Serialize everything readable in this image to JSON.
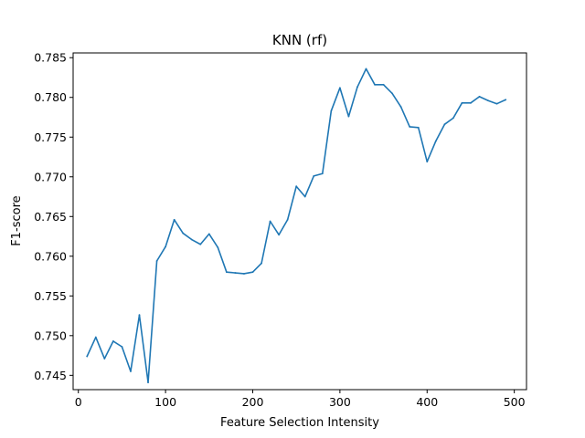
{
  "chart_data": {
    "type": "line",
    "title": "KNN (rf)",
    "xlabel": "Feature Selection Intensity",
    "ylabel": "F1-score",
    "xlim": [
      -6,
      514
    ],
    "ylim": [
      0.7432,
      0.7856
    ],
    "x_ticks": [
      0,
      100,
      200,
      300,
      400,
      500
    ],
    "x_tick_labels": [
      "0",
      "100",
      "200",
      "300",
      "400",
      "500"
    ],
    "y_ticks": [
      0.745,
      0.75,
      0.755,
      0.76,
      0.765,
      0.77,
      0.775,
      0.78,
      0.785
    ],
    "y_tick_labels": [
      "0.745",
      "0.750",
      "0.755",
      "0.760",
      "0.765",
      "0.770",
      "0.775",
      "0.780",
      "0.785"
    ],
    "grid": false,
    "color": "#1f77b4",
    "series": [
      {
        "x": [
          10,
          20,
          30,
          40,
          50,
          60,
          70,
          80,
          90,
          100,
          110,
          120,
          130,
          140,
          150,
          160,
          170,
          180,
          190,
          200,
          210,
          220,
          230,
          240,
          250,
          260,
          270,
          280,
          290,
          300,
          310,
          320,
          330,
          340,
          350,
          360,
          370,
          380,
          390,
          400,
          410,
          420,
          430,
          440,
          450,
          460,
          470,
          480,
          490
        ],
        "values": [
          0.7474,
          0.7498,
          0.7471,
          0.7493,
          0.7486,
          0.7455,
          0.7526,
          0.7441,
          0.7594,
          0.7612,
          0.7646,
          0.7629,
          0.7621,
          0.7615,
          0.7628,
          0.7611,
          0.758,
          0.7579,
          0.7578,
          0.758,
          0.7591,
          0.7644,
          0.7627,
          0.7646,
          0.7688,
          0.7675,
          0.7701,
          0.7704,
          0.7783,
          0.7812,
          0.7776,
          0.7813,
          0.7836,
          0.7816,
          0.7816,
          0.7805,
          0.7788,
          0.7763,
          0.7762,
          0.7719,
          0.7745,
          0.7766,
          0.7774,
          0.7793,
          0.7793,
          0.7801,
          0.7796,
          0.7792,
          0.7797
        ]
      }
    ]
  }
}
